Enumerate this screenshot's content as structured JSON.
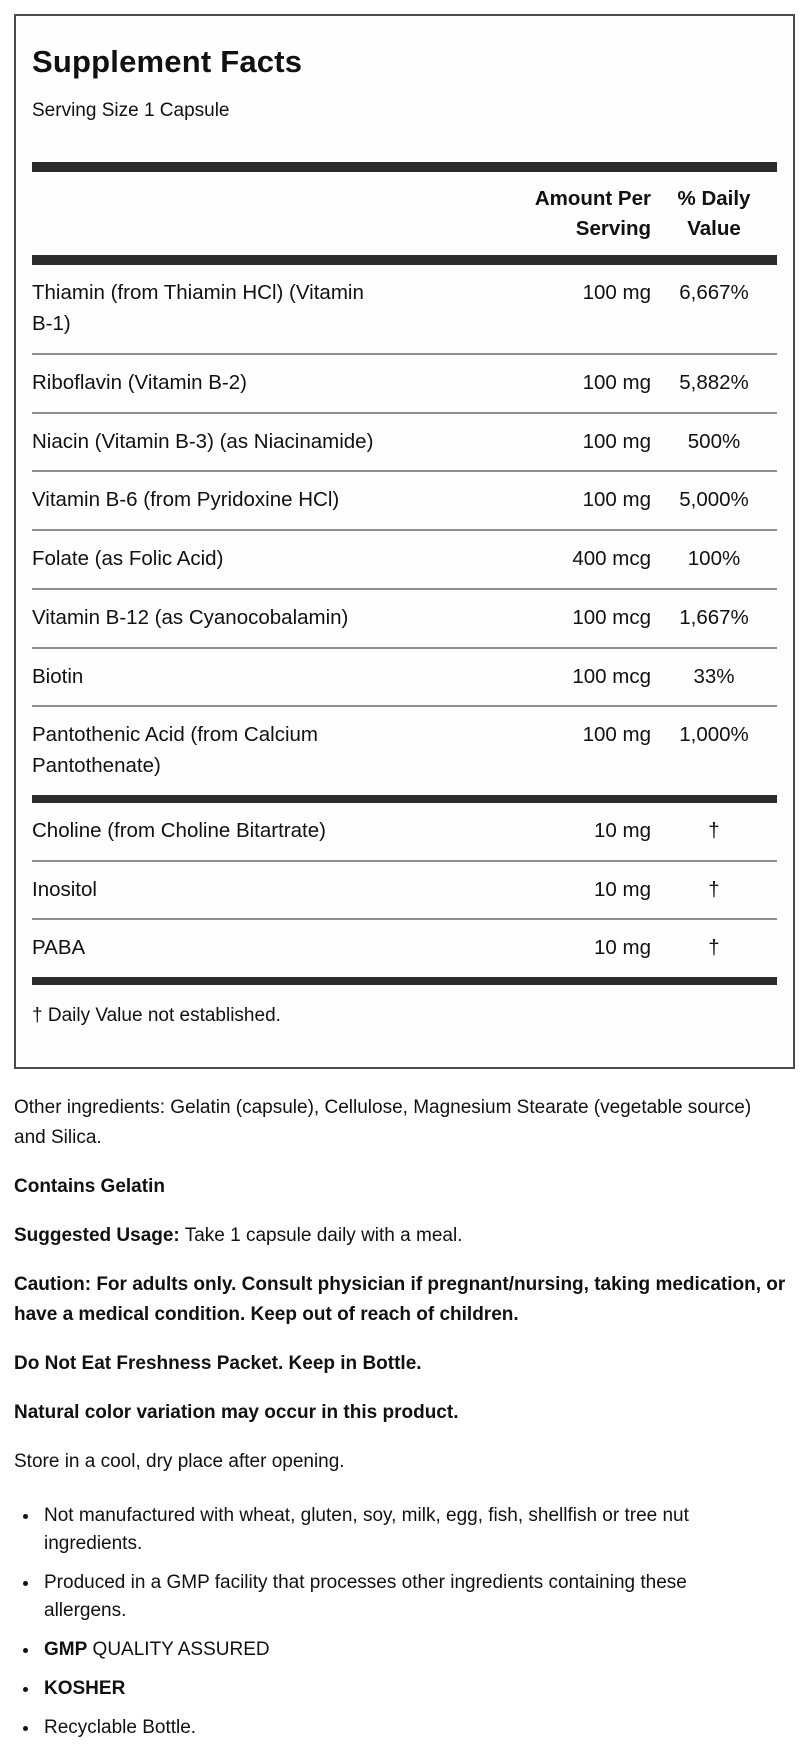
{
  "colors": {
    "bar": "#2b2b2b",
    "thin_rule": "#8f8f8f",
    "box_border": "#4b4b4b",
    "text": "#111111"
  },
  "panel": {
    "title": "Supplement Facts",
    "serving_size": "Serving Size 1 Capsule",
    "columns": {
      "amount": "Amount Per\nServing",
      "daily_value": "% Daily\nValue"
    },
    "rows": [
      {
        "name": "Thiamin (from Thiamin HCl) (Vitamin\nB-1)",
        "amount": "100 mg",
        "dv": "6,667%"
      },
      {
        "name": "Riboflavin (Vitamin B-2)",
        "amount": "100 mg",
        "dv": "5,882%"
      },
      {
        "name": "Niacin (Vitamin B-3) (as Niacinamide)",
        "amount": "100 mg",
        "dv": "500%"
      },
      {
        "name": "Vitamin B-6 (from Pyridoxine HCl)",
        "amount": "100 mg",
        "dv": "5,000%"
      },
      {
        "name": "Folate (as Folic Acid)",
        "amount": "400 mcg",
        "dv": "100%"
      },
      {
        "name": "Vitamin B-12 (as Cyanocobalamin)",
        "amount": "100 mcg",
        "dv": "1,667%"
      },
      {
        "name": "Biotin",
        "amount": "100 mcg",
        "dv": "33%"
      },
      {
        "name": "Pantothenic Acid (from Calcium\nPantothenate)",
        "amount": "100 mg",
        "dv": "1,000%"
      },
      {
        "name": "Choline (from Choline Bitartrate)",
        "amount": "10 mg",
        "dv": "†"
      },
      {
        "name": "Inositol",
        "amount": "10 mg",
        "dv": "†"
      },
      {
        "name": "PABA",
        "amount": "10 mg",
        "dv": "†"
      }
    ],
    "footnote": "† Daily Value not established."
  },
  "notes": {
    "other_ingredients": "Other ingredients: Gelatin (capsule), Cellulose, Magnesium Stearate (vegetable source)\nand Silica.",
    "contains": "Contains Gelatin",
    "suggested_usage_label": "Suggested Usage:",
    "suggested_usage_text": " Take 1 capsule daily with a meal.",
    "caution": "Caution: For adults only. Consult physician if pregnant/nursing, taking medication, or\nhave a medical condition. Keep out of reach of children.",
    "freshness": "Do Not Eat Freshness Packet. Keep in Bottle.",
    "color_variation": "Natural color variation may occur in this product.",
    "storage": "Store in a cool, dry place after opening."
  },
  "bullets": {
    "allergen_free": "Not manufactured with wheat, gluten, soy, milk, egg, fish, shellfish or tree nut\ningredients.",
    "gmp_facility": "Produced in a GMP facility that processes other ingredients containing these\nallergens.",
    "gmp_label": "GMP",
    "gmp_text": " QUALITY ASSURED",
    "kosher": "KOSHER",
    "recyclable": "Recyclable Bottle."
  }
}
